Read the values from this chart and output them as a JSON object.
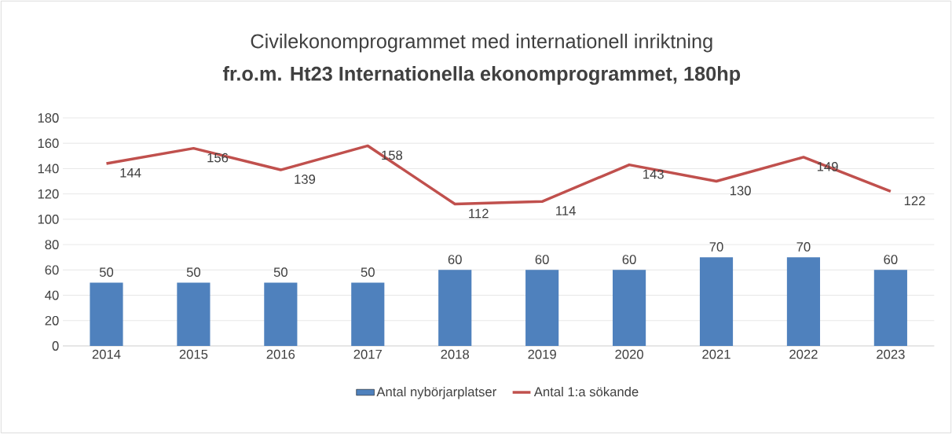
{
  "chart_data": {
    "type": "bar",
    "title": "Civilekonomprogrammet med internationell inriktning",
    "subtitle": "fr.o.m. Ht23 Internationella ekonomprogrammet, 180hp",
    "categories": [
      "2014",
      "2015",
      "2016",
      "2017",
      "2018",
      "2019",
      "2020",
      "2021",
      "2022",
      "2023"
    ],
    "series": [
      {
        "name": "Antal nybörjarplatser",
        "color": "#4f81bd",
        "values": [
          50,
          50,
          50,
          50,
          60,
          60,
          60,
          70,
          70,
          60
        ]
      },
      {
        "name": "Antal 1:a sökande",
        "type": "line",
        "color": "#c0504d",
        "values": [
          144,
          156,
          139,
          158,
          112,
          114,
          143,
          130,
          149,
          122
        ]
      }
    ],
    "ylim": [
      0,
      180
    ],
    "yticks": [
      0,
      20,
      40,
      60,
      80,
      100,
      120,
      140,
      160,
      180
    ],
    "grid": "y",
    "legend": "bottom",
    "data_labels": true,
    "marker": "none",
    "line_style": "solid"
  }
}
